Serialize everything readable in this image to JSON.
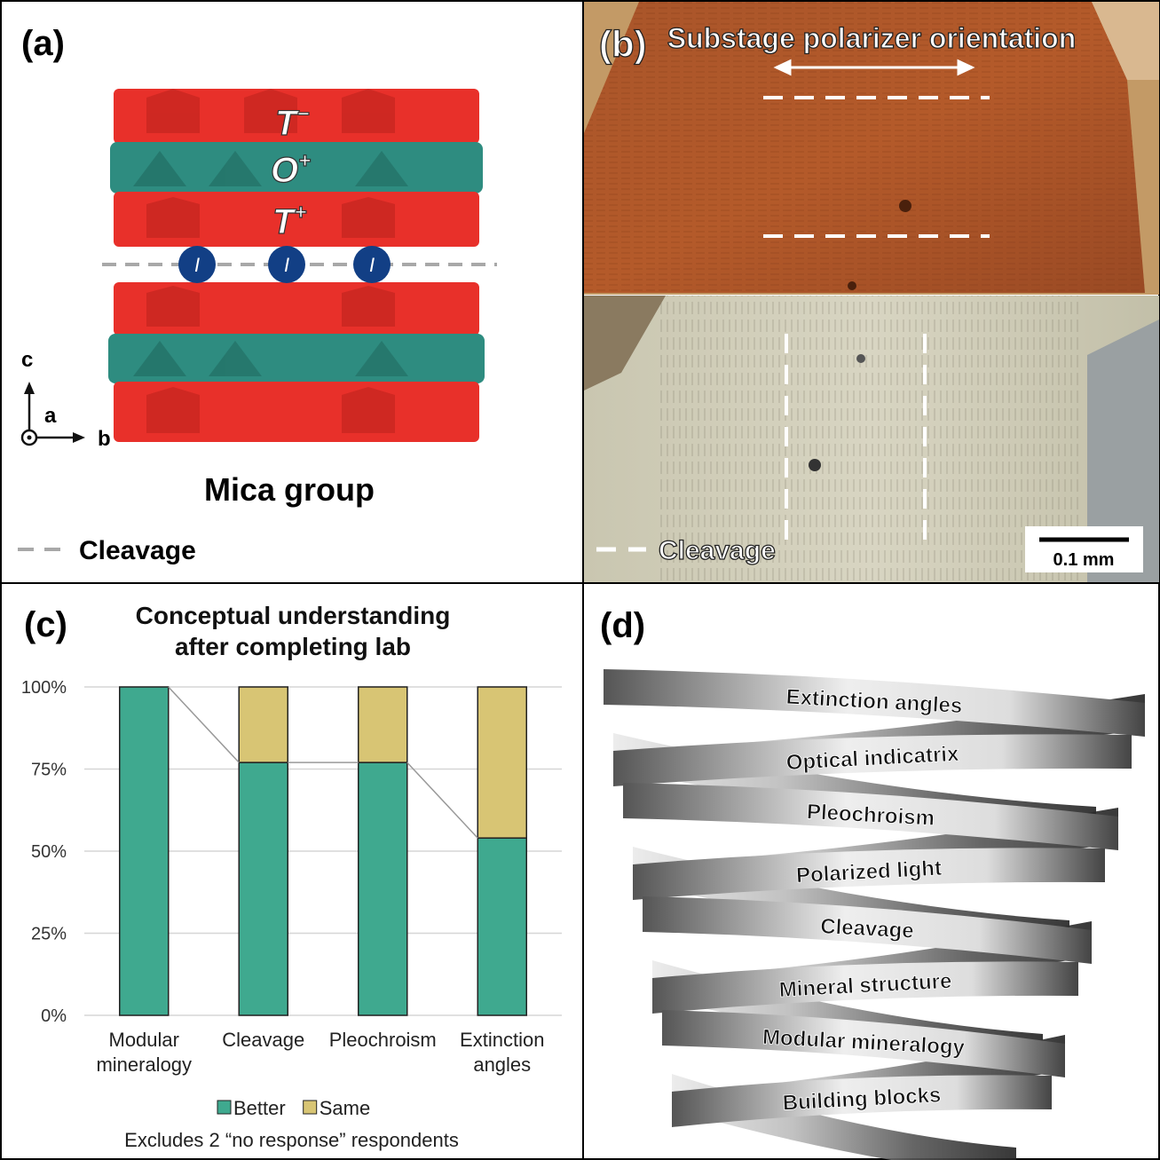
{
  "panel_a": {
    "label": "(a)",
    "layers": [
      {
        "letter": "T",
        "charge": "−"
      },
      {
        "letter": "O",
        "charge": "+"
      },
      {
        "letter": "T",
        "charge": "+"
      }
    ],
    "interlayer_cation": "I",
    "axes": {
      "c": "c",
      "a": "a",
      "b": "b"
    },
    "caption": "Mica group",
    "legend": "Cleavage"
  },
  "panel_b": {
    "label": "(b)",
    "title": "Substage polarizer orientation",
    "legend": "Cleavage",
    "scale_bar": "0.1 mm"
  },
  "chart_data": {
    "type": "stacked-bar",
    "panel_label": "(c)",
    "title": "Conceptual understanding after completing lab",
    "categories": [
      "Modular mineralogy",
      "Cleavage",
      "Pleochroism",
      "Extinction angles"
    ],
    "series": [
      {
        "name": "Better",
        "color": "#3fa98f",
        "values": [
          100,
          77,
          77,
          54
        ]
      },
      {
        "name": "Same",
        "color": "#d8c574",
        "values": [
          0,
          23,
          23,
          46
        ]
      }
    ],
    "ylim": [
      0,
      100
    ],
    "yticks": [
      {
        "value": 0,
        "label": "0%"
      },
      {
        "value": 25,
        "label": "25%"
      },
      {
        "value": 50,
        "label": "50%"
      },
      {
        "value": 75,
        "label": "75%"
      },
      {
        "value": 100,
        "label": "100%"
      }
    ],
    "grid": true,
    "series_lines": true,
    "note": "Excludes 2 “no response” respondents"
  },
  "panel_d": {
    "label": "(d)",
    "spiral_labels": [
      "Extinction angles",
      "Optical indicatrix",
      "Pleochroism",
      "Polarized light",
      "Cleavage",
      "Mineral structure",
      "Modular mineralogy",
      "Building blocks"
    ]
  }
}
